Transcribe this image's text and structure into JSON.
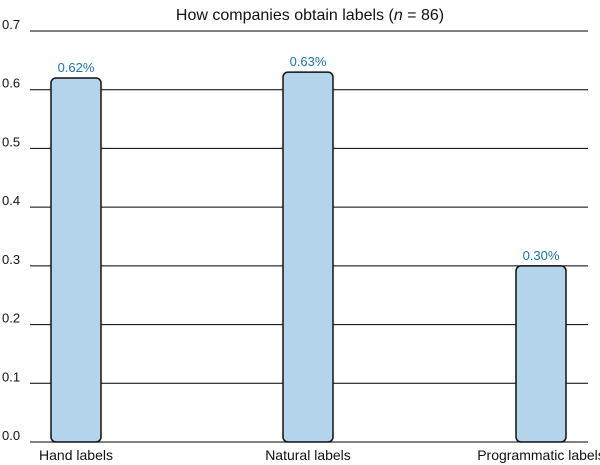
{
  "chart_data": {
    "type": "bar",
    "title": {
      "prefix": "How companies obtain labels (",
      "italic": "n",
      "suffix": " = 86)"
    },
    "categories": [
      "Hand labels",
      "Natural labels",
      "Programmatic labels"
    ],
    "values": [
      0.62,
      0.63,
      0.3
    ],
    "data_labels": [
      "0.62%",
      "0.63%",
      "0.30%"
    ],
    "ylim": [
      0,
      0.7
    ],
    "yticks": [
      "0.0",
      "0.1",
      "0.2",
      "0.3",
      "0.4",
      "0.5",
      "0.6",
      "0.7"
    ],
    "grid": true,
    "legend": "none",
    "colors": {
      "bar_fill": "#b3d4ea",
      "bar_stroke": "#111111",
      "data_label": "#1a73b5",
      "grid": "#000000"
    }
  }
}
